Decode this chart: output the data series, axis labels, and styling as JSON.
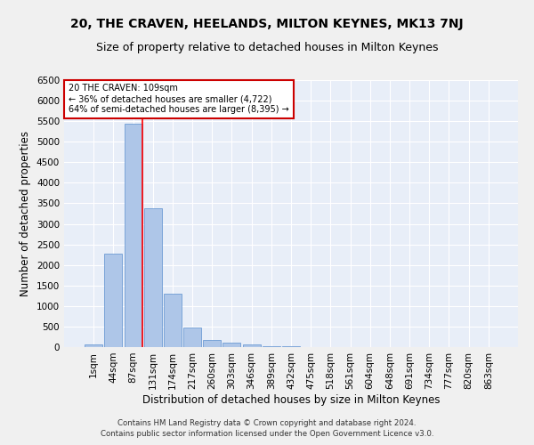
{
  "title": "20, THE CRAVEN, HEELANDS, MILTON KEYNES, MK13 7NJ",
  "subtitle": "Size of property relative to detached houses in Milton Keynes",
  "xlabel": "Distribution of detached houses by size in Milton Keynes",
  "ylabel": "Number of detached properties",
  "footer_line1": "Contains HM Land Registry data © Crown copyright and database right 2024.",
  "footer_line2": "Contains public sector information licensed under the Open Government Licence v3.0.",
  "annotation_title": "20 THE CRAVEN: 109sqm",
  "annotation_line2": "← 36% of detached houses are smaller (4,722)",
  "annotation_line3": "64% of semi-detached houses are larger (8,395) →",
  "bar_labels": [
    "1sqm",
    "44sqm",
    "87sqm",
    "131sqm",
    "174sqm",
    "217sqm",
    "260sqm",
    "303sqm",
    "346sqm",
    "389sqm",
    "432sqm",
    "475sqm",
    "518sqm",
    "561sqm",
    "604sqm",
    "648sqm",
    "691sqm",
    "734sqm",
    "777sqm",
    "820sqm",
    "863sqm"
  ],
  "bar_values": [
    70,
    2270,
    5430,
    3390,
    1290,
    480,
    165,
    100,
    55,
    30,
    15,
    8,
    5,
    3,
    2,
    1,
    1,
    1,
    0,
    0,
    0
  ],
  "bar_color": "#aec6e8",
  "bar_edge_color": "#5b8fcf",
  "annotation_box_color": "#ffffff",
  "annotation_box_edge_color": "#cc0000",
  "ylim": [
    0,
    6500
  ],
  "yticks": [
    0,
    500,
    1000,
    1500,
    2000,
    2500,
    3000,
    3500,
    4000,
    4500,
    5000,
    5500,
    6000,
    6500
  ],
  "bg_color": "#e8eef8",
  "grid_color": "#ffffff",
  "fig_bg_color": "#f0f0f0",
  "title_fontsize": 10,
  "subtitle_fontsize": 9,
  "axis_label_fontsize": 8.5,
  "tick_fontsize": 7.5,
  "annotation_fontsize": 7,
  "red_line_index": 2
}
